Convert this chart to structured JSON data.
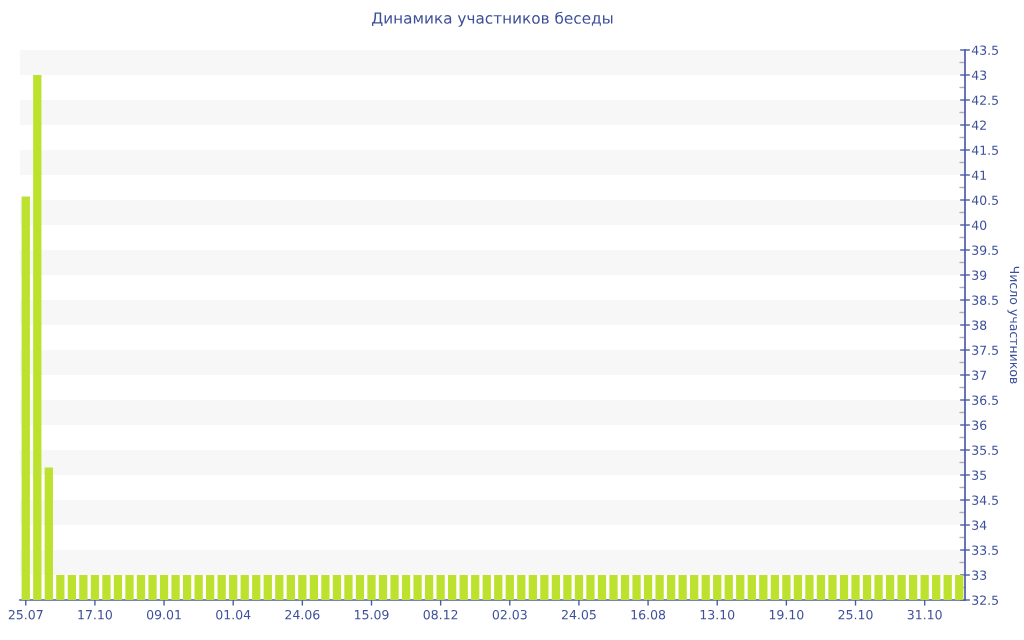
{
  "chart_data": {
    "type": "bar",
    "title": "Динамика участников беседы",
    "ylabel": "Число участников",
    "categories": [
      "25.07",
      null,
      null,
      null,
      null,
      null,
      "17.10",
      null,
      null,
      null,
      null,
      null,
      "09.01",
      null,
      null,
      null,
      null,
      null,
      "01.04",
      null,
      null,
      null,
      null,
      null,
      "24.06",
      null,
      null,
      null,
      null,
      null,
      "15.09",
      null,
      null,
      null,
      null,
      null,
      "08.12",
      null,
      null,
      null,
      null,
      null,
      "02.03",
      null,
      null,
      null,
      null,
      null,
      "24.05",
      null,
      null,
      null,
      null,
      null,
      "16.08",
      null,
      null,
      null,
      null,
      null,
      "13.10",
      null,
      null,
      null,
      null,
      null,
      "19.10",
      null,
      null,
      null,
      null,
      null,
      "25.10",
      null,
      null,
      null,
      null,
      null,
      "31.10",
      null,
      null,
      null
    ],
    "values": [
      40.57,
      43,
      35.15,
      33,
      33,
      33,
      33,
      33,
      33,
      33,
      33,
      33,
      33,
      33,
      33,
      33,
      33,
      33,
      33,
      33,
      33,
      33,
      33,
      33,
      33,
      33,
      33,
      33,
      33,
      33,
      33,
      33,
      33,
      33,
      33,
      33,
      33,
      33,
      33,
      33,
      33,
      33,
      33,
      33,
      33,
      33,
      33,
      33,
      33,
      33,
      33,
      33,
      33,
      33,
      33,
      33,
      33,
      33,
      33,
      33,
      33,
      33,
      33,
      33,
      33,
      33,
      33,
      33,
      33,
      33,
      33,
      33,
      33,
      33,
      33,
      33,
      33,
      33,
      33,
      33,
      33,
      33
    ],
    "color": "#bde12f",
    "ylim": [
      32.5,
      43.5
    ],
    "yticks": [
      32.5,
      {
        "value": 32.75,
        "label": null
      },
      33,
      {
        "value": 33.25,
        "label": null
      },
      33.5,
      {
        "value": 33.75,
        "label": null
      },
      34,
      {
        "value": 34.25,
        "label": null
      },
      34.5,
      {
        "value": 34.75,
        "label": null
      },
      35,
      {
        "value": 35.25,
        "label": null
      },
      35.5,
      {
        "value": 35.75,
        "label": null
      },
      36,
      {
        "value": 36.25,
        "label": null
      },
      36.5,
      {
        "value": 36.75,
        "label": null
      },
      37,
      {
        "value": 37.25,
        "label": null
      },
      37.5,
      {
        "value": 37.75,
        "label": null
      },
      38,
      {
        "value": 38.25,
        "label": null
      },
      38.5,
      {
        "value": 38.75,
        "label": null
      },
      39,
      {
        "value": 39.25,
        "label": null
      },
      39.5,
      {
        "value": 39.75,
        "label": null
      },
      40,
      {
        "value": 40.25,
        "label": null
      },
      40.5,
      {
        "value": 40.75,
        "label": null
      },
      41,
      {
        "value": 41.25,
        "label": null
      },
      41.5,
      {
        "value": 41.75,
        "label": null
      },
      42,
      {
        "value": 42.25,
        "label": null
      },
      42.5,
      {
        "value": 42.75,
        "label": null
      },
      43,
      {
        "value": 43.25,
        "label": null
      },
      43.5
    ],
    "bands": [
      {
        "axis": "y",
        "from": 33,
        "to": 33.5,
        "color": "#f7f7f7"
      },
      {
        "axis": "y",
        "from": 34,
        "to": 34.5,
        "color": "#f7f7f7"
      },
      {
        "axis": "y",
        "from": 35,
        "to": 35.5,
        "color": "#f7f7f7"
      },
      {
        "axis": "y",
        "from": 36,
        "to": 36.5,
        "color": "#f7f7f7"
      },
      {
        "axis": "y",
        "from": 37,
        "to": 37.5,
        "color": "#f7f7f7"
      },
      {
        "axis": "y",
        "from": 38,
        "to": 38.5,
        "color": "#f7f7f7"
      },
      {
        "axis": "y",
        "from": 39,
        "to": 39.5,
        "color": "#f7f7f7"
      },
      {
        "axis": "y",
        "from": 40,
        "to": 40.5,
        "color": "#f7f7f7"
      },
      {
        "axis": "y",
        "from": 41,
        "to": 41.5,
        "color": "#f7f7f7"
      },
      {
        "axis": "y",
        "from": 42,
        "to": 42.5,
        "color": "#f7f7f7"
      },
      {
        "axis": "y",
        "from": 43,
        "to": 43.5,
        "color": "#f7f7f7"
      }
    ]
  }
}
